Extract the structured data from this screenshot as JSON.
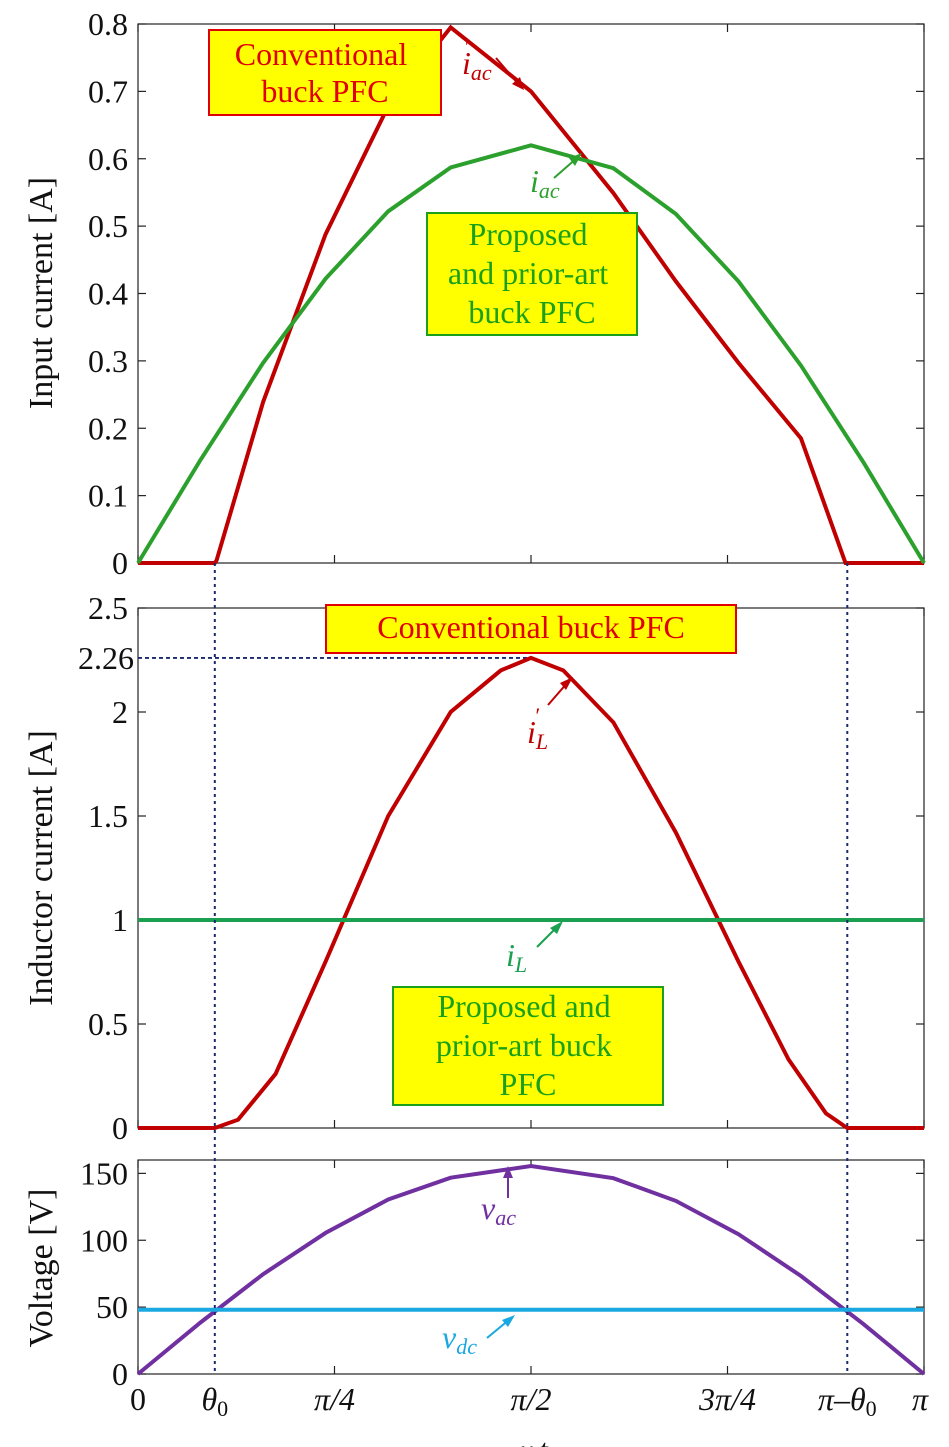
{
  "chart_data": [
    {
      "type": "line",
      "ylabel": "Input current  [A]",
      "xlim": [
        0,
        3.14159
      ],
      "ylim": [
        0,
        0.8
      ],
      "y_ticks": [
        "0",
        "0.1",
        "0.2",
        "0.3",
        "0.4",
        "0.5",
        "0.6",
        "0.7",
        "0.8"
      ],
      "x_ticks": [
        0,
        0.7854,
        1.5708,
        2.3562,
        3.1416
      ],
      "grid": false,
      "series": [
        {
          "label_main": "i",
          "label_prime": "′",
          "label_sub": "ac",
          "color": "#c00000",
          "x": [
            0,
            0.307,
            0.314,
            0.5,
            0.75,
            1.0,
            1.25,
            1.5708,
            1.9,
            2.15,
            2.4,
            2.65,
            2.828,
            2.835,
            3.1416
          ],
          "y": [
            0,
            0,
            0.004,
            0.239,
            0.488,
            0.678,
            0.795,
            0.7,
            0.549,
            0.418,
            0.297,
            0.185,
            0.0,
            0,
            0
          ]
        },
        {
          "label_main": "i",
          "label_sub": "ac",
          "color": "#2ca02c",
          "x": [
            0,
            0.25,
            0.5,
            0.75,
            1.0,
            1.25,
            1.5708,
            1.9,
            2.15,
            2.4,
            2.65,
            2.9,
            3.1416
          ],
          "y": [
            0,
            0.153,
            0.297,
            0.422,
            0.522,
            0.587,
            0.62,
            0.586,
            0.518,
            0.418,
            0.293,
            0.149,
            0
          ]
        }
      ],
      "annotations": [
        {
          "lines": [
            "Conventional",
            "buck PFC"
          ],
          "color": "#e00000",
          "bg": "#ffff00"
        },
        {
          "lines": [
            "Proposed",
            "and prior-art",
            "buck PFC"
          ],
          "color": "#1aa01a",
          "bg": "#ffff00"
        }
      ]
    },
    {
      "type": "line",
      "ylabel": "Inductor current  [A]",
      "xlim": [
        0,
        3.14159
      ],
      "ylim": [
        0,
        2.5
      ],
      "y_ticks": [
        "0",
        "0.5",
        "1",
        "1.5",
        "2",
        "2.5"
      ],
      "extra_y_tick": {
        "value": 2.26,
        "label": "2.26"
      },
      "grid": false,
      "series": [
        {
          "label_main": "i",
          "label_prime": "′",
          "label_sub": "L",
          "color": "#c00000",
          "x": [
            0,
            0.307,
            0.4,
            0.55,
            0.75,
            1.0,
            1.25,
            1.45,
            1.5708,
            1.7,
            1.9,
            2.15,
            2.4,
            2.6,
            2.75,
            2.835,
            3.1416
          ],
          "y": [
            0,
            0,
            0.04,
            0.26,
            0.8,
            1.5,
            2.0,
            2.2,
            2.26,
            2.2,
            1.95,
            1.42,
            0.8,
            0.33,
            0.07,
            0,
            0
          ]
        },
        {
          "label_main": "i",
          "label_sub": "L",
          "color": "#1aa050",
          "x": [
            0,
            3.1416
          ],
          "y": [
            1,
            1
          ]
        }
      ],
      "annotations": [
        {
          "lines": [
            "Conventional buck PFC"
          ],
          "color": "#e00000",
          "bg": "#ffff00"
        },
        {
          "lines": [
            "Proposed and",
            "prior-art buck",
            "PFC"
          ],
          "color": "#1aa01a",
          "bg": "#ffff00"
        }
      ]
    },
    {
      "type": "line",
      "ylabel": "Voltage  [V]",
      "xlabel": "ωt",
      "xlim": [
        0,
        3.14159
      ],
      "ylim": [
        0,
        160
      ],
      "y_ticks": [
        "0",
        "50",
        "100",
        "150"
      ],
      "x_tick_labels": [
        "0",
        "θ0",
        "π/4",
        "π/2",
        "3π/4",
        "π–θ0",
        "π"
      ],
      "grid": false,
      "series": [
        {
          "label_main": "v",
          "label_sub": "ac",
          "color": "#7030a0",
          "x": [
            0,
            0.25,
            0.5,
            0.75,
            1.0,
            1.25,
            1.5708,
            1.9,
            2.15,
            2.4,
            2.65,
            2.9,
            3.1416
          ],
          "y": [
            0,
            38.5,
            74.6,
            105.5,
            130.5,
            146.8,
            155.5,
            146.4,
            129.4,
            104.5,
            73.3,
            37.2,
            0
          ]
        },
        {
          "label_main": "v",
          "label_sub": "dc",
          "color": "#1aa8e0",
          "x": [
            0,
            3.1416
          ],
          "y": [
            48,
            48
          ]
        }
      ]
    }
  ]
}
